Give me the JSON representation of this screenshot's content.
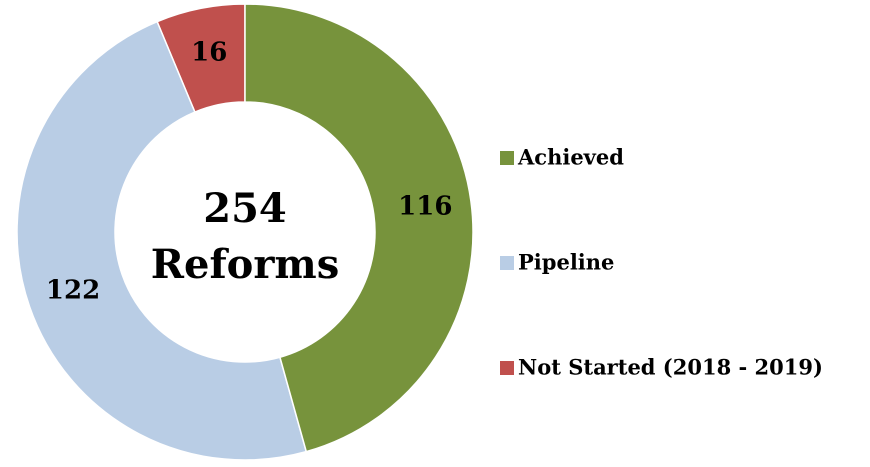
{
  "chart_data": {
    "type": "donut",
    "center_text": [
      "254",
      "Reforms"
    ],
    "categories": [
      "Achieved",
      "Pipeline",
      "Not Started (2018 - 2019)"
    ],
    "values": [
      116,
      122,
      16
    ],
    "colors": [
      "#77933c",
      "#b9cde5",
      "#c0504d"
    ],
    "legend": "right"
  }
}
